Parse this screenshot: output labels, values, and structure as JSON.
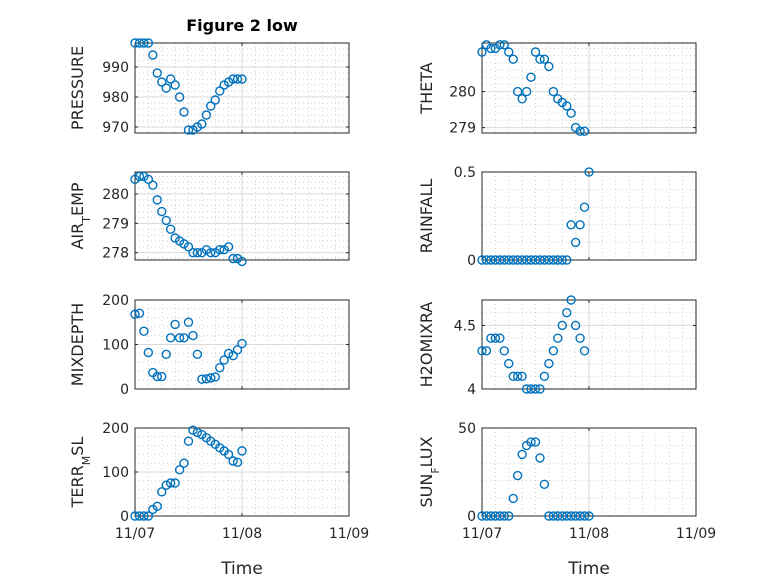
{
  "colors": {
    "marker": "#0072bd",
    "axis": "#262626",
    "grid": "#d9d9d9"
  },
  "title": "Figure 2 low",
  "chart_data": [
    {
      "type": "scatter",
      "ylabel": "PRESSURE",
      "xlabel": "",
      "xlim": [
        0,
        2
      ],
      "xticks": [
        0,
        1,
        2
      ],
      "xticklabels": [
        "",
        "",
        ""
      ],
      "ylim": [
        968,
        998
      ],
      "yticks": [
        970,
        980,
        990
      ],
      "yticklabels": [
        "970",
        "980",
        "990"
      ],
      "points": [
        [
          0,
          998
        ],
        [
          0.042,
          998
        ],
        [
          0.083,
          998
        ],
        [
          0.125,
          998
        ],
        [
          0.167,
          994
        ],
        [
          0.208,
          988
        ],
        [
          0.25,
          985
        ],
        [
          0.292,
          983
        ],
        [
          0.333,
          986
        ],
        [
          0.375,
          984
        ],
        [
          0.417,
          980
        ],
        [
          0.458,
          975
        ],
        [
          0.5,
          969
        ],
        [
          0.542,
          969
        ],
        [
          0.583,
          970
        ],
        [
          0.625,
          971
        ],
        [
          0.667,
          974
        ],
        [
          0.708,
          977
        ],
        [
          0.75,
          979
        ],
        [
          0.792,
          982
        ],
        [
          0.833,
          984
        ],
        [
          0.875,
          985
        ],
        [
          0.917,
          986
        ],
        [
          0.958,
          986
        ],
        [
          1.0,
          986
        ]
      ]
    },
    {
      "type": "scatter",
      "ylabel": "THETA",
      "xlabel": "",
      "xlim": [
        0,
        2
      ],
      "xticks": [
        0,
        1,
        2
      ],
      "xticklabels": [
        "",
        "",
        ""
      ],
      "ylim": [
        278.85,
        281.35
      ],
      "yticks": [
        279,
        280
      ],
      "yticklabels": [
        "279",
        "280"
      ],
      "points": [
        [
          0,
          281.1
        ],
        [
          0.042,
          281.3
        ],
        [
          0.083,
          281.2
        ],
        [
          0.125,
          281.2
        ],
        [
          0.167,
          281.3
        ],
        [
          0.208,
          281.3
        ],
        [
          0.25,
          281.1
        ],
        [
          0.292,
          280.9
        ],
        [
          0.333,
          280.0
        ],
        [
          0.375,
          279.8
        ],
        [
          0.417,
          280.0
        ],
        [
          0.458,
          280.4
        ],
        [
          0.5,
          281.1
        ],
        [
          0.542,
          280.9
        ],
        [
          0.583,
          280.9
        ],
        [
          0.625,
          280.7
        ],
        [
          0.667,
          280.0
        ],
        [
          0.708,
          279.8
        ],
        [
          0.75,
          279.7
        ],
        [
          0.792,
          279.6
        ],
        [
          0.833,
          279.4
        ],
        [
          0.875,
          279.0
        ],
        [
          0.917,
          278.9
        ],
        [
          0.958,
          278.9
        ]
      ]
    },
    {
      "type": "scatter",
      "ylabel": "AIR_TEMP",
      "xlabel": "",
      "xlim": [
        0,
        2
      ],
      "xticks": [
        0,
        1,
        2
      ],
      "xticklabels": [
        "",
        "",
        ""
      ],
      "ylim": [
        277.75,
        280.75
      ],
      "yticks": [
        278,
        279,
        280
      ],
      "yticklabels": [
        "278",
        "279",
        "280"
      ],
      "points": [
        [
          0,
          280.5
        ],
        [
          0.042,
          280.6
        ],
        [
          0.083,
          280.6
        ],
        [
          0.125,
          280.5
        ],
        [
          0.167,
          280.3
        ],
        [
          0.208,
          279.8
        ],
        [
          0.25,
          279.4
        ],
        [
          0.292,
          279.1
        ],
        [
          0.333,
          278.8
        ],
        [
          0.375,
          278.5
        ],
        [
          0.417,
          278.4
        ],
        [
          0.458,
          278.3
        ],
        [
          0.5,
          278.2
        ],
        [
          0.542,
          278.0
        ],
        [
          0.583,
          278.0
        ],
        [
          0.625,
          278.0
        ],
        [
          0.667,
          278.1
        ],
        [
          0.708,
          278.0
        ],
        [
          0.75,
          278.0
        ],
        [
          0.792,
          278.1
        ],
        [
          0.833,
          278.1
        ],
        [
          0.875,
          278.2
        ],
        [
          0.917,
          277.8
        ],
        [
          0.958,
          277.8
        ],
        [
          1.0,
          277.7
        ]
      ]
    },
    {
      "type": "scatter",
      "ylabel": "RAINFALL",
      "xlabel": "",
      "xlim": [
        0,
        2
      ],
      "xticks": [
        0,
        1,
        2
      ],
      "xticklabels": [
        "",
        "",
        ""
      ],
      "ylim": [
        0,
        0.5
      ],
      "yticks": [
        0,
        0.5
      ],
      "yticklabels": [
        "0",
        "0.5"
      ],
      "points": [
        [
          0,
          0
        ],
        [
          0.042,
          0
        ],
        [
          0.083,
          0
        ],
        [
          0.125,
          0
        ],
        [
          0.167,
          0
        ],
        [
          0.208,
          0
        ],
        [
          0.25,
          0
        ],
        [
          0.292,
          0
        ],
        [
          0.333,
          0
        ],
        [
          0.375,
          0
        ],
        [
          0.417,
          0
        ],
        [
          0.458,
          0
        ],
        [
          0.5,
          0
        ],
        [
          0.542,
          0
        ],
        [
          0.583,
          0
        ],
        [
          0.625,
          0
        ],
        [
          0.667,
          0
        ],
        [
          0.708,
          0
        ],
        [
          0.75,
          0
        ],
        [
          0.792,
          0
        ],
        [
          0.833,
          0.2
        ],
        [
          0.875,
          0.1
        ],
        [
          0.917,
          0.2
        ],
        [
          0.958,
          0.3
        ],
        [
          1.0,
          0.5
        ]
      ]
    },
    {
      "type": "scatter",
      "ylabel": "MIXDEPTH",
      "xlabel": "",
      "xlim": [
        0,
        2
      ],
      "xticks": [
        0,
        1,
        2
      ],
      "xticklabels": [
        "",
        "",
        ""
      ],
      "ylim": [
        0,
        200
      ],
      "yticks": [
        0,
        100,
        200
      ],
      "yticklabels": [
        "0",
        "100",
        "200"
      ],
      "points": [
        [
          0,
          168
        ],
        [
          0.042,
          170
        ],
        [
          0.083,
          130
        ],
        [
          0.125,
          82
        ],
        [
          0.167,
          37
        ],
        [
          0.208,
          28
        ],
        [
          0.25,
          28
        ],
        [
          0.292,
          78
        ],
        [
          0.333,
          115
        ],
        [
          0.375,
          145
        ],
        [
          0.417,
          115
        ],
        [
          0.458,
          115
        ],
        [
          0.5,
          150
        ],
        [
          0.542,
          120
        ],
        [
          0.583,
          78
        ],
        [
          0.625,
          22
        ],
        [
          0.667,
          23
        ],
        [
          0.708,
          25
        ],
        [
          0.75,
          27
        ],
        [
          0.792,
          48
        ],
        [
          0.833,
          65
        ],
        [
          0.875,
          80
        ],
        [
          0.917,
          75
        ],
        [
          0.958,
          88
        ],
        [
          1.0,
          102
        ]
      ]
    },
    {
      "type": "scatter",
      "ylabel": "H2OMIXRA",
      "xlabel": "",
      "xlim": [
        0,
        2
      ],
      "xticks": [
        0,
        1,
        2
      ],
      "xticklabels": [
        "",
        "",
        ""
      ],
      "ylim": [
        4,
        4.7
      ],
      "yticks": [
        4,
        4.5
      ],
      "yticklabels": [
        "4",
        "4.5"
      ],
      "points": [
        [
          0,
          4.3
        ],
        [
          0.042,
          4.3
        ],
        [
          0.083,
          4.4
        ],
        [
          0.125,
          4.4
        ],
        [
          0.167,
          4.4
        ],
        [
          0.208,
          4.3
        ],
        [
          0.25,
          4.2
        ],
        [
          0.292,
          4.1
        ],
        [
          0.333,
          4.1
        ],
        [
          0.375,
          4.1
        ],
        [
          0.417,
          4.0
        ],
        [
          0.458,
          4.0
        ],
        [
          0.5,
          4.0
        ],
        [
          0.542,
          4.0
        ],
        [
          0.583,
          4.1
        ],
        [
          0.625,
          4.2
        ],
        [
          0.667,
          4.3
        ],
        [
          0.708,
          4.4
        ],
        [
          0.75,
          4.5
        ],
        [
          0.792,
          4.6
        ],
        [
          0.833,
          4.7
        ],
        [
          0.875,
          4.5
        ],
        [
          0.917,
          4.4
        ],
        [
          0.958,
          4.3
        ]
      ]
    },
    {
      "type": "scatter",
      "ylabel": "TERR_MSL",
      "xlabel": "Time",
      "xlim": [
        0,
        2
      ],
      "xticks": [
        0,
        1,
        2
      ],
      "xticklabels": [
        "11/07",
        "11/08",
        "11/09"
      ],
      "ylim": [
        0,
        200
      ],
      "yticks": [
        0,
        100,
        200
      ],
      "yticklabels": [
        "0",
        "100",
        "200"
      ],
      "points": [
        [
          0,
          0
        ],
        [
          0.042,
          0
        ],
        [
          0.083,
          0
        ],
        [
          0.125,
          0
        ],
        [
          0.167,
          15
        ],
        [
          0.208,
          22
        ],
        [
          0.25,
          55
        ],
        [
          0.292,
          70
        ],
        [
          0.333,
          75
        ],
        [
          0.375,
          75
        ],
        [
          0.417,
          105
        ],
        [
          0.458,
          120
        ],
        [
          0.5,
          170
        ],
        [
          0.542,
          195
        ],
        [
          0.583,
          190
        ],
        [
          0.625,
          185
        ],
        [
          0.667,
          178
        ],
        [
          0.708,
          170
        ],
        [
          0.75,
          163
        ],
        [
          0.792,
          155
        ],
        [
          0.833,
          148
        ],
        [
          0.875,
          140
        ],
        [
          0.917,
          125
        ],
        [
          0.958,
          122
        ],
        [
          1.0,
          148
        ]
      ]
    },
    {
      "type": "scatter",
      "ylabel": "SUN_FLUX",
      "xlabel": "Time",
      "xlim": [
        0,
        2
      ],
      "xticks": [
        0,
        1,
        2
      ],
      "xticklabels": [
        "11/07",
        "11/08",
        "11/09"
      ],
      "ylim": [
        0,
        50
      ],
      "yticks": [
        0,
        50
      ],
      "yticklabels": [
        "0",
        "50"
      ],
      "points": [
        [
          0,
          0
        ],
        [
          0.042,
          0
        ],
        [
          0.083,
          0
        ],
        [
          0.125,
          0
        ],
        [
          0.167,
          0
        ],
        [
          0.208,
          0
        ],
        [
          0.25,
          0
        ],
        [
          0.292,
          10
        ],
        [
          0.333,
          23
        ],
        [
          0.375,
          35
        ],
        [
          0.417,
          40
        ],
        [
          0.458,
          42
        ],
        [
          0.5,
          42
        ],
        [
          0.542,
          33
        ],
        [
          0.583,
          18
        ],
        [
          0.625,
          0
        ],
        [
          0.667,
          0
        ],
        [
          0.708,
          0
        ],
        [
          0.75,
          0
        ],
        [
          0.792,
          0
        ],
        [
          0.833,
          0
        ],
        [
          0.875,
          0
        ],
        [
          0.917,
          0
        ],
        [
          0.958,
          0
        ],
        [
          1.0,
          0
        ]
      ]
    }
  ]
}
